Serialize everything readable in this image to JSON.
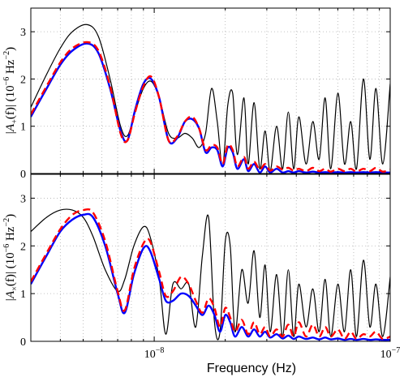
{
  "chart_data": [
    {
      "type": "line",
      "panel": "top",
      "ylabel": "|A+(f)| (10^-6 Hz^-2)",
      "ylabel_parts": {
        "left": "|A",
        "sub": "+",
        "mid": "(f)| (10",
        "exp": "−6",
        "unit": " Hz",
        "unit_exp": "−2",
        "right": ")"
      },
      "xscale": "log",
      "xlim": [
        3e-09,
        1e-07
      ],
      "ylim": [
        0,
        3.5
      ],
      "yticks": [
        "0",
        "1",
        "2",
        "3"
      ],
      "grid": true,
      "series": [
        {
          "color": "#000000",
          "style": "solid-thin",
          "x": [
            3e-09,
            3.5e-09,
            4e-09,
            4.5e-09,
            5.2e-09,
            5.8e-09,
            6.5e-09,
            7.2e-09,
            7.7e-09,
            8.3e-09,
            9e-09,
            9.7e-09,
            1.05e-08,
            1.15e-08,
            1.25e-08,
            1.35e-08,
            1.45e-08,
            1.55e-08,
            1.65e-08,
            1.75e-08,
            1.85e-08,
            1.95e-08,
            2.05e-08,
            2.15e-08,
            2.25e-08,
            2.4e-08,
            2.5e-08,
            2.65e-08,
            2.8e-08,
            2.95e-08,
            3.1e-08,
            3.3e-08,
            3.5e-08,
            3.7e-08,
            3.9e-08,
            4.1e-08,
            4.4e-08,
            4.7e-08,
            5e-08,
            5.3e-08,
            5.6e-08,
            6e-08,
            6.4e-08,
            6.8e-08,
            7.2e-08,
            7.7e-08,
            8.2e-08,
            8.7e-08,
            9.3e-08,
            1e-07
          ],
          "y": [
            1.4,
            2.1,
            2.65,
            3.0,
            3.15,
            2.9,
            2.0,
            1.0,
            0.8,
            1.3,
            1.8,
            1.95,
            1.6,
            0.85,
            0.75,
            0.85,
            0.75,
            0.55,
            0.85,
            1.8,
            1.1,
            0.15,
            1.45,
            1.7,
            0.4,
            1.6,
            0.2,
            1.5,
            0.1,
            0.9,
            0.05,
            1.0,
            0.1,
            1.3,
            0.1,
            1.2,
            0.2,
            1.1,
            0.3,
            1.6,
            0.1,
            1.7,
            0.2,
            1.1,
            0.1,
            2.0,
            0.3,
            1.8,
            0.2,
            1.9
          ]
        },
        {
          "color": "#0000ff",
          "style": "solid-thick",
          "x": [
            3e-09,
            3.5e-09,
            4e-09,
            4.5e-09,
            5.2e-09,
            5.8e-09,
            6.5e-09,
            7.2e-09,
            7.7e-09,
            8.3e-09,
            9e-09,
            9.7e-09,
            1.05e-08,
            1.15e-08,
            1.25e-08,
            1.35e-08,
            1.45e-08,
            1.55e-08,
            1.65e-08,
            1.75e-08,
            1.85e-08,
            1.95e-08,
            2.05e-08,
            2.15e-08,
            2.25e-08,
            2.4e-08,
            2.5e-08,
            2.65e-08,
            2.8e-08,
            2.95e-08,
            3.1e-08,
            3.3e-08,
            3.5e-08,
            3.7e-08,
            3.9e-08,
            4.1e-08,
            4.4e-08,
            4.7e-08,
            5e-08,
            5.3e-08,
            5.6e-08,
            6e-08,
            6.4e-08,
            6.8e-08,
            7.2e-08,
            7.7e-08,
            8.2e-08,
            8.7e-08,
            9.3e-08,
            1e-07
          ],
          "y": [
            1.2,
            1.8,
            2.3,
            2.6,
            2.75,
            2.55,
            1.8,
            0.9,
            0.7,
            1.35,
            1.9,
            2.0,
            1.6,
            0.7,
            0.75,
            1.1,
            1.15,
            0.95,
            0.45,
            0.55,
            0.5,
            0.15,
            0.55,
            0.45,
            0.1,
            0.3,
            0.05,
            0.2,
            0.02,
            0.15,
            0.02,
            0.1,
            0.02,
            0.05,
            0.02,
            0.05,
            0.02,
            0.04,
            0.02,
            0.03,
            0.02,
            0.03,
            0.02,
            0.03,
            0.02,
            0.03,
            0.02,
            0.03,
            0.02,
            0.02
          ]
        },
        {
          "color": "#ff0000",
          "style": "dashed-thick",
          "x": [
            3e-09,
            3.5e-09,
            4e-09,
            4.5e-09,
            5.2e-09,
            5.8e-09,
            6.5e-09,
            7.2e-09,
            7.7e-09,
            8.3e-09,
            9e-09,
            9.7e-09,
            1.05e-08,
            1.15e-08,
            1.25e-08,
            1.35e-08,
            1.45e-08,
            1.55e-08,
            1.65e-08,
            1.75e-08,
            1.85e-08,
            1.95e-08,
            2.05e-08,
            2.15e-08,
            2.25e-08,
            2.4e-08,
            2.5e-08,
            2.65e-08,
            2.8e-08,
            2.95e-08,
            3.1e-08,
            3.3e-08,
            3.5e-08,
            3.7e-08,
            3.9e-08,
            4.1e-08,
            4.4e-08,
            4.7e-08,
            5e-08,
            5.3e-08,
            5.6e-08,
            6e-08,
            6.4e-08,
            6.8e-08,
            7.2e-08,
            7.7e-08,
            8.2e-08,
            8.7e-08,
            9.3e-08,
            1e-07
          ],
          "y": [
            1.25,
            1.85,
            2.35,
            2.65,
            2.78,
            2.6,
            1.85,
            0.85,
            0.7,
            1.3,
            1.85,
            2.05,
            1.6,
            0.7,
            0.78,
            1.1,
            1.2,
            0.95,
            0.5,
            0.6,
            0.55,
            0.2,
            0.6,
            0.5,
            0.15,
            0.35,
            0.1,
            0.25,
            0.08,
            0.2,
            0.06,
            0.15,
            0.08,
            0.12,
            0.06,
            0.1,
            0.05,
            0.12,
            0.05,
            0.1,
            0.04,
            0.1,
            0.05,
            0.1,
            0.04,
            0.1,
            0.05,
            0.12,
            0.04,
            0.08
          ]
        }
      ]
    },
    {
      "type": "line",
      "panel": "bottom",
      "ylabel": "|A×(f)| (10^-6 Hz^-2)",
      "ylabel_parts": {
        "left": "|A",
        "sub": "×",
        "mid": "(f)| (10",
        "exp": "−6",
        "unit": " Hz",
        "unit_exp": "−2",
        "right": ")"
      },
      "xlabel": "Frequency (Hz)",
      "xscale": "log",
      "xlim": [
        3e-09,
        1e-07
      ],
      "ylim": [
        0,
        3.5
      ],
      "yticks": [
        "0",
        "1",
        "2",
        "3"
      ],
      "xticks": [
        {
          "value": 1e-08,
          "base": "10",
          "exp": "−8"
        },
        {
          "value": 1e-07,
          "base": "10",
          "exp": "−7"
        }
      ],
      "grid": true,
      "series": [
        {
          "color": "#000000",
          "style": "solid-thin",
          "x": [
            3e-09,
            3.5e-09,
            4e-09,
            4.5e-09,
            5e-09,
            5.5e-09,
            6.2e-09,
            7e-09,
            7.5e-09,
            8.2e-09,
            9e-09,
            9.6e-09,
            1.05e-08,
            1.12e-08,
            1.2e-08,
            1.3e-08,
            1.4e-08,
            1.5e-08,
            1.6e-08,
            1.7e-08,
            1.8e-08,
            1.9e-08,
            2e-08,
            2.1e-08,
            2.2e-08,
            2.35e-08,
            2.5e-08,
            2.65e-08,
            2.8e-08,
            2.95e-08,
            3.1e-08,
            3.3e-08,
            3.5e-08,
            3.7e-08,
            3.9e-08,
            4.1e-08,
            4.4e-08,
            4.7e-08,
            5e-08,
            5.3e-08,
            5.6e-08,
            6e-08,
            6.4e-08,
            6.8e-08,
            7.2e-08,
            7.7e-08,
            8.2e-08,
            8.7e-08,
            9.3e-08,
            1e-07
          ],
          "y": [
            2.3,
            2.6,
            2.75,
            2.75,
            2.6,
            2.2,
            1.5,
            1.05,
            1.3,
            2.0,
            2.4,
            2.2,
            1.3,
            0.15,
            1.2,
            1.1,
            1.2,
            0.3,
            1.8,
            2.6,
            0.4,
            0.2,
            2.1,
            2.0,
            0.2,
            1.5,
            0.8,
            1.9,
            0.5,
            1.6,
            0.2,
            1.4,
            0.1,
            1.5,
            0.1,
            1.2,
            0.3,
            1.1,
            0.2,
            1.3,
            0.1,
            1.2,
            0.2,
            1.5,
            0.1,
            1.7,
            0.3,
            1.2,
            0.1,
            1.35
          ]
        },
        {
          "color": "#0000ff",
          "style": "solid-thick",
          "x": [
            3e-09,
            3.5e-09,
            4e-09,
            4.5e-09,
            5e-09,
            5.5e-09,
            6.2e-09,
            7e-09,
            7.5e-09,
            8.2e-09,
            9e-09,
            9.6e-09,
            1.05e-08,
            1.12e-08,
            1.2e-08,
            1.3e-08,
            1.4e-08,
            1.5e-08,
            1.6e-08,
            1.7e-08,
            1.8e-08,
            1.9e-08,
            2e-08,
            2.1e-08,
            2.2e-08,
            2.35e-08,
            2.5e-08,
            2.65e-08,
            2.8e-08,
            2.95e-08,
            3.1e-08,
            3.3e-08,
            3.5e-08,
            3.7e-08,
            3.9e-08,
            4.1e-08,
            4.4e-08,
            4.7e-08,
            5e-08,
            5.3e-08,
            5.6e-08,
            6e-08,
            6.4e-08,
            6.8e-08,
            7.2e-08,
            7.7e-08,
            8.2e-08,
            8.7e-08,
            9.3e-08,
            1e-07
          ],
          "y": [
            1.2,
            1.8,
            2.3,
            2.55,
            2.65,
            2.6,
            2.0,
            1.0,
            0.6,
            1.4,
            1.95,
            1.9,
            1.3,
            0.85,
            0.85,
            1.0,
            0.95,
            0.75,
            0.55,
            0.75,
            0.55,
            0.2,
            0.55,
            0.4,
            0.1,
            0.3,
            0.1,
            0.25,
            0.1,
            0.2,
            0.08,
            0.15,
            0.06,
            0.12,
            0.05,
            0.1,
            0.05,
            0.08,
            0.04,
            0.08,
            0.04,
            0.06,
            0.03,
            0.05,
            0.03,
            0.05,
            0.03,
            0.04,
            0.03,
            0.03
          ]
        },
        {
          "color": "#ff0000",
          "style": "dashed-thick",
          "x": [
            3e-09,
            3.5e-09,
            4e-09,
            4.5e-09,
            5e-09,
            5.5e-09,
            6.2e-09,
            7e-09,
            7.5e-09,
            8.2e-09,
            9e-09,
            9.6e-09,
            1.05e-08,
            1.12e-08,
            1.2e-08,
            1.3e-08,
            1.4e-08,
            1.5e-08,
            1.6e-08,
            1.7e-08,
            1.8e-08,
            1.9e-08,
            2e-08,
            2.1e-08,
            2.2e-08,
            2.35e-08,
            2.5e-08,
            2.65e-08,
            2.8e-08,
            2.95e-08,
            3.1e-08,
            3.3e-08,
            3.5e-08,
            3.7e-08,
            3.9e-08,
            4.1e-08,
            4.4e-08,
            4.7e-08,
            5e-08,
            5.3e-08,
            5.6e-08,
            6e-08,
            6.4e-08,
            6.8e-08,
            7.2e-08,
            7.7e-08,
            8.2e-08,
            8.7e-08,
            9.3e-08,
            1e-07
          ],
          "y": [
            1.25,
            1.85,
            2.35,
            2.65,
            2.75,
            2.7,
            2.1,
            1.05,
            0.65,
            1.5,
            2.05,
            2.1,
            1.45,
            0.95,
            1.05,
            1.35,
            1.2,
            0.85,
            0.6,
            0.9,
            0.7,
            0.3,
            0.7,
            0.5,
            0.2,
            0.45,
            0.15,
            0.4,
            0.15,
            0.3,
            0.1,
            0.25,
            0.1,
            0.35,
            0.1,
            0.4,
            0.1,
            0.35,
            0.1,
            0.3,
            0.1,
            0.25,
            0.05,
            0.2,
            0.05,
            0.15,
            0.1,
            0.2,
            0.05,
            0.1
          ]
        }
      ]
    }
  ]
}
